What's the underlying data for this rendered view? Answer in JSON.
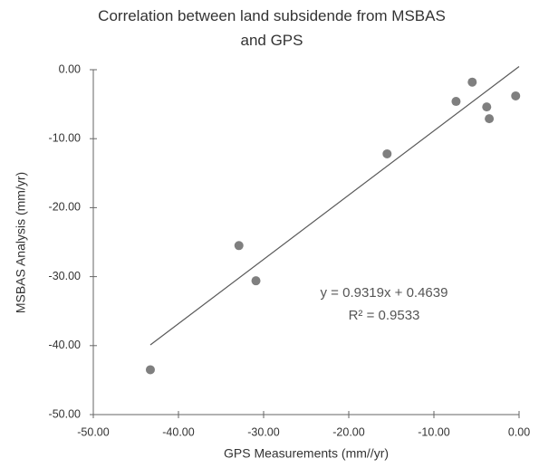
{
  "chart_data": {
    "type": "scatter",
    "title": "Correlation between land subsidende from MSBAS and GPS",
    "x_label": "GPS Measurements (mm//yr)",
    "y_label": "MSBAS Analysis (mm/yr)",
    "x": [
      -43.3,
      -32.9,
      -30.9,
      -15.5,
      -7.4,
      -5.5,
      -3.8,
      -3.5,
      -0.4
    ],
    "values": [
      -43.5,
      -25.5,
      -30.6,
      -12.2,
      -4.6,
      -1.8,
      -5.4,
      -7.1,
      -3.8
    ],
    "color": "#7f7f7f",
    "trendline": {
      "x": [
        -43.3,
        0
      ],
      "values": [
        -39.89,
        0.46
      ],
      "color": "#595959"
    },
    "annotations": [
      "y = 0.9319x + 0.4639",
      "R² = 0.9533"
    ],
    "xlim": [
      -50,
      0
    ],
    "ylim": [
      -50,
      0
    ],
    "xticks": [
      {
        "value": -50,
        "label": "-50.00"
      },
      {
        "value": -40,
        "label": "-40.00"
      },
      {
        "value": -30,
        "label": "-30.00"
      },
      {
        "value": -20,
        "label": "-20.00"
      },
      {
        "value": -10,
        "label": "-10.00"
      },
      {
        "value": 0,
        "label": "0.00"
      }
    ],
    "yticks": [
      {
        "value": 0,
        "label": "0.00"
      },
      {
        "value": -10,
        "label": "-10.00"
      },
      {
        "value": -20,
        "label": "-20.00"
      },
      {
        "value": -30,
        "label": "-30.00"
      },
      {
        "value": -40,
        "label": "-40.00"
      },
      {
        "value": -50,
        "label": "-50.00"
      }
    ]
  }
}
